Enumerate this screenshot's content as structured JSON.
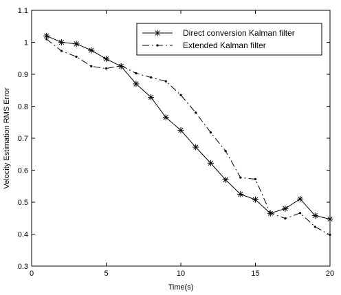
{
  "chart_data": {
    "type": "line",
    "title": "",
    "xlabel": "Time(s)",
    "ylabel": "Velocity Estimation RMS Error",
    "xlim": [
      0,
      20
    ],
    "ylim": [
      0.3,
      1.1
    ],
    "xticks": [
      0,
      5,
      10,
      15,
      20
    ],
    "yticks": [
      0.3,
      0.4,
      0.5,
      0.6,
      0.7,
      0.8,
      0.9,
      1,
      1.1
    ],
    "xtick_labels": [
      "0",
      "5",
      "10",
      "15",
      "20"
    ],
    "ytick_labels": [
      "0.3",
      "0.4",
      "0.5",
      "0.6",
      "0.7",
      "0.8",
      "0.9",
      "1",
      "1.1"
    ],
    "grid": false,
    "legend_position": "top-right",
    "x": [
      1,
      2,
      3,
      4,
      5,
      6,
      7,
      8,
      9,
      10,
      11,
      12,
      13,
      14,
      15,
      16,
      17,
      18,
      19,
      20
    ],
    "series": [
      {
        "name": "Direct conversion Kalman filter",
        "marker": "asterisk",
        "line": "solid",
        "color": "#000000",
        "values": [
          1.02,
          1.0,
          0.995,
          0.975,
          0.948,
          0.925,
          0.87,
          0.828,
          0.765,
          0.725,
          0.672,
          0.622,
          0.57,
          0.525,
          0.508,
          0.465,
          0.48,
          0.51,
          0.458,
          0.447
        ]
      },
      {
        "name": "Extended Kalman filter",
        "marker": "dot",
        "line": "dash-dot",
        "color": "#000000",
        "values": [
          1.01,
          0.973,
          0.955,
          0.925,
          0.918,
          0.927,
          0.903,
          0.89,
          0.878,
          0.835,
          0.78,
          0.718,
          0.66,
          0.577,
          0.572,
          0.466,
          0.449,
          0.466,
          0.423,
          0.398
        ]
      }
    ]
  }
}
